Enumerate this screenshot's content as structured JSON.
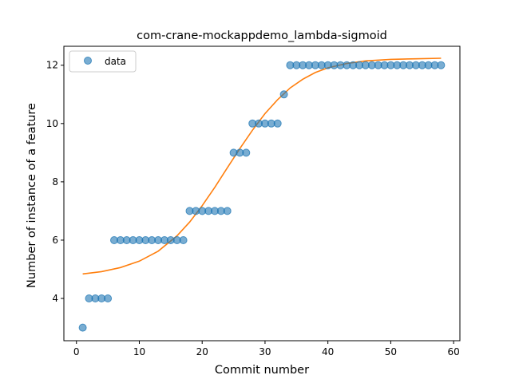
{
  "chart_data": {
    "type": "scatter",
    "title": "com-crane-mockappdemo_lambda-sigmoid",
    "xlabel": "Commit number",
    "ylabel": "Number of instance of a feature",
    "xlim": [
      -2,
      61
    ],
    "ylim": [
      2.55,
      12.65
    ],
    "xticks": [
      0,
      10,
      20,
      30,
      40,
      50,
      60
    ],
    "yticks": [
      4,
      6,
      8,
      10,
      12
    ],
    "grid": false,
    "legend": {
      "placement": "top-left",
      "entries": [
        "data"
      ]
    },
    "series": [
      {
        "name": "data",
        "kind": "scatter",
        "color": "#1f77b4",
        "x": [
          1,
          2,
          3,
          4,
          5,
          6,
          7,
          8,
          9,
          10,
          11,
          12,
          13,
          14,
          15,
          16,
          17,
          18,
          19,
          20,
          21,
          22,
          23,
          24,
          25,
          26,
          27,
          28,
          29,
          30,
          31,
          32,
          33,
          34,
          35,
          36,
          37,
          38,
          39,
          40,
          41,
          42,
          43,
          44,
          45,
          46,
          47,
          48,
          49,
          50,
          51,
          52,
          53,
          54,
          55,
          56,
          57,
          58
        ],
        "y": [
          3,
          4,
          4,
          4,
          4,
          6,
          6,
          6,
          6,
          6,
          6,
          6,
          6,
          6,
          6,
          6,
          6,
          7,
          7,
          7,
          7,
          7,
          7,
          7,
          9,
          9,
          9,
          10,
          10,
          10,
          10,
          10,
          11,
          12,
          12,
          12,
          12,
          12,
          12,
          12,
          12,
          12,
          12,
          12,
          12,
          12,
          12,
          12,
          12,
          12,
          12,
          12,
          12,
          12,
          12,
          12,
          12,
          12
        ]
      },
      {
        "kind": "line",
        "color": "#ff7f0e",
        "x": [
          1,
          4,
          7,
          10,
          13,
          16,
          18,
          20,
          22,
          24,
          26,
          28,
          30,
          32,
          34,
          36,
          38,
          40,
          43,
          46,
          50,
          54,
          58
        ],
        "y": [
          4.84,
          4.92,
          5.06,
          5.28,
          5.62,
          6.15,
          6.62,
          7.18,
          7.81,
          8.48,
          9.14,
          9.77,
          10.34,
          10.82,
          11.22,
          11.52,
          11.75,
          11.91,
          12.06,
          12.15,
          12.2,
          12.22,
          12.24
        ]
      }
    ]
  }
}
